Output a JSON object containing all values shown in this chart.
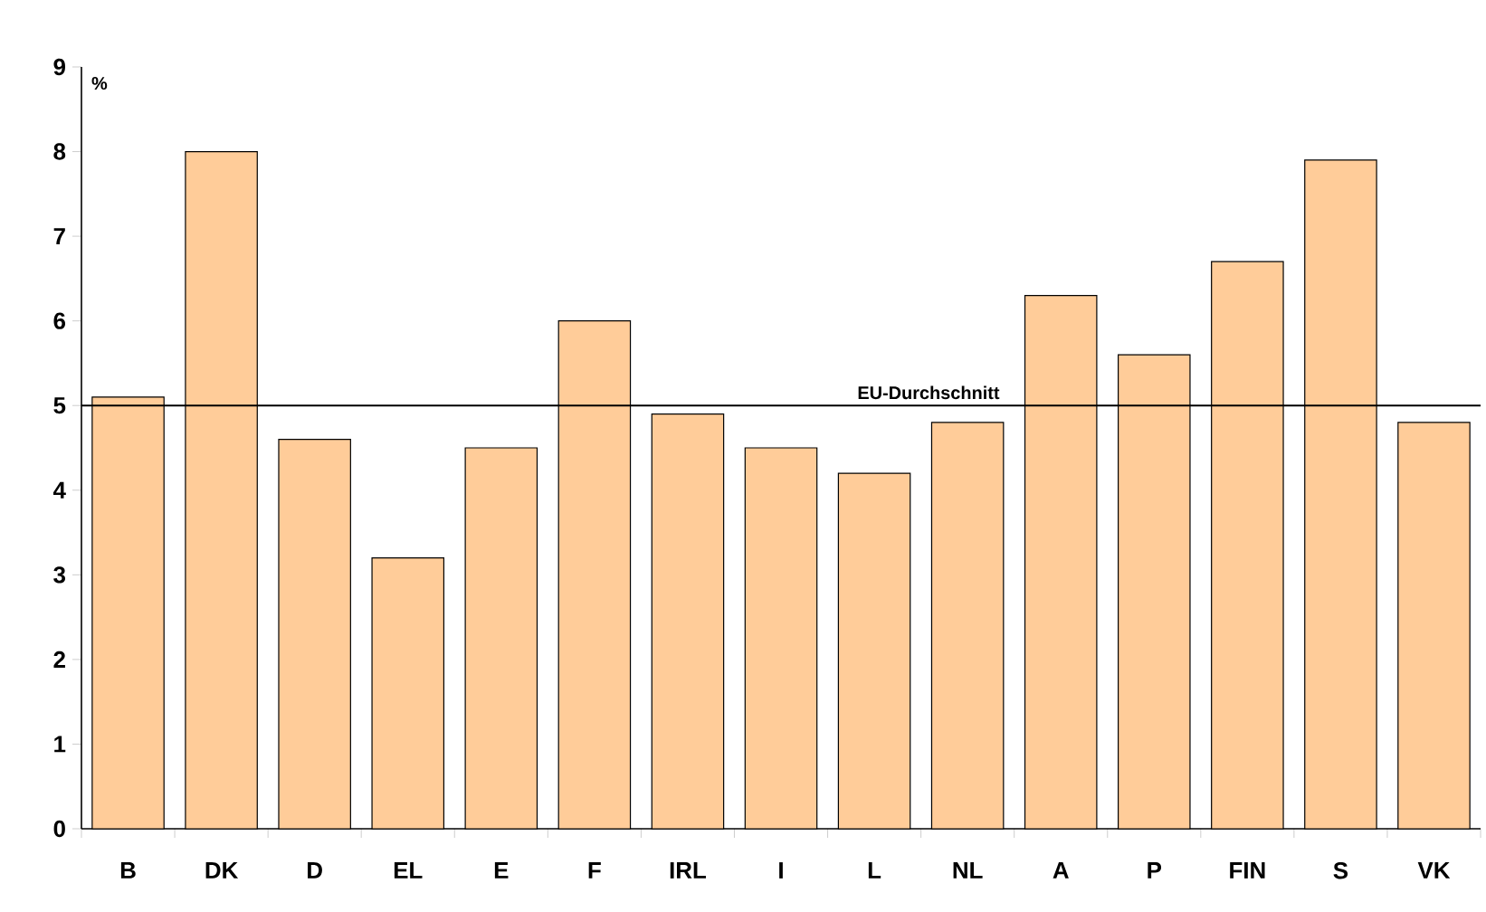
{
  "chart_data": {
    "type": "bar",
    "ylabel": "%",
    "categories": [
      "B",
      "DK",
      "D",
      "EL",
      "E",
      "F",
      "IRL",
      "I",
      "L",
      "NL",
      "A",
      "P",
      "FIN",
      "S",
      "VK"
    ],
    "values": [
      5.1,
      8.0,
      4.6,
      3.2,
      4.5,
      6.0,
      4.9,
      4.5,
      4.2,
      4.8,
      6.3,
      5.6,
      6.7,
      7.9,
      4.8
    ],
    "color": "#ffcc99",
    "ylim": [
      0,
      9
    ],
    "yticks": [
      0,
      1,
      2,
      3,
      4,
      5,
      6,
      7,
      8,
      9
    ],
    "ref_lines": [
      {
        "axis": "y",
        "value": 5,
        "label": "EU-Durchschnitt"
      }
    ],
    "grid": false
  }
}
